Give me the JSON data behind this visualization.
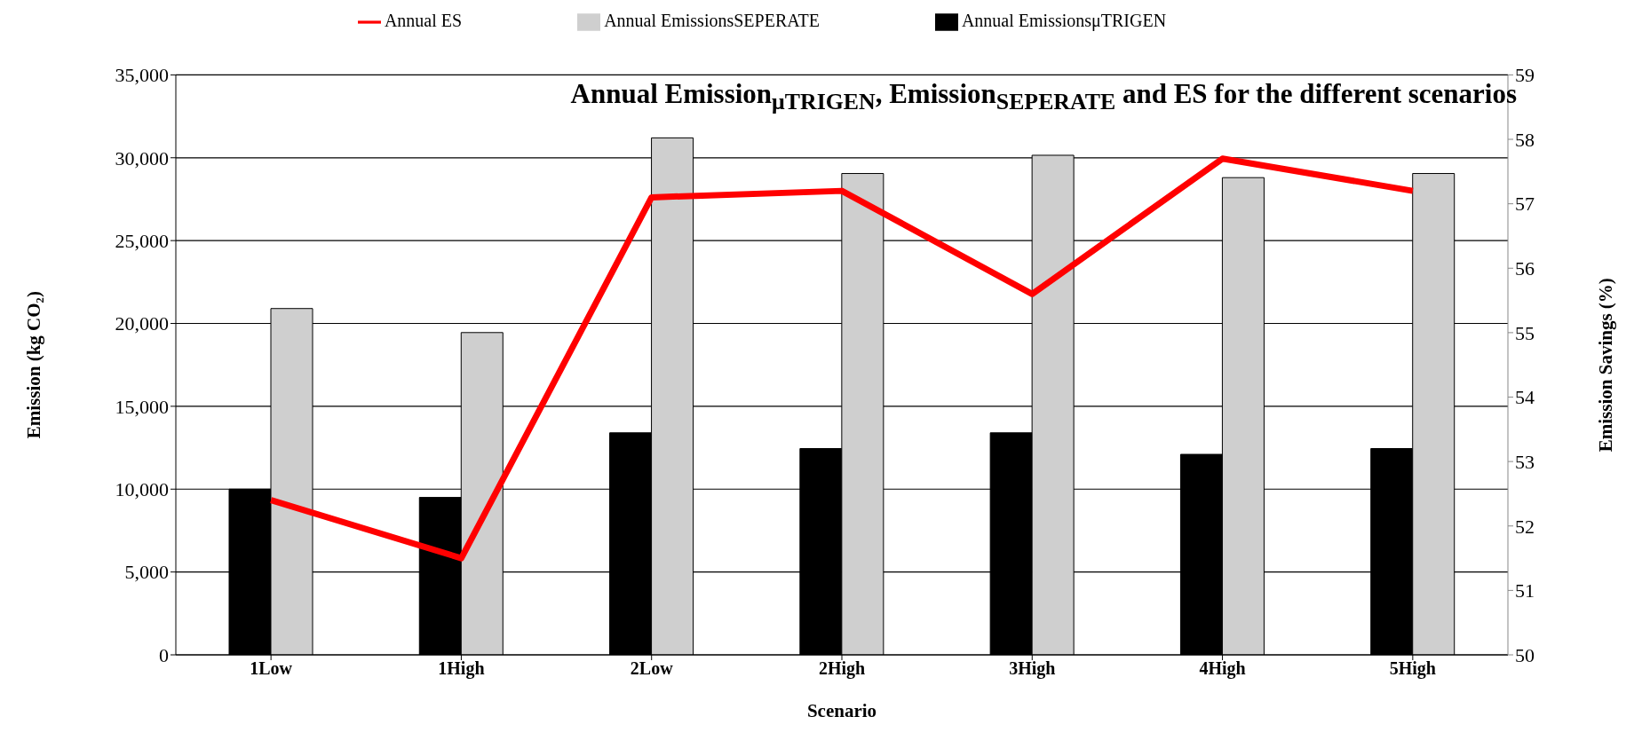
{
  "chart_data": {
    "type": "bar",
    "title": "Annual Emission$_{μTRIGEN}$, Emission$_{SEPERATE}$ and ES for the different scenarios",
    "xlabel": "Scenario",
    "ylabel": "Emission (kg CO₂)",
    "y2label": "Emission Savings (%)",
    "categories": [
      "1Low",
      "1High",
      "2Low",
      "2High",
      "3High",
      "4High",
      "5High"
    ],
    "series": [
      {
        "name": "Annual EmissionsμTRIGEN",
        "color": "#000000",
        "values": [
          10000,
          9500,
          13400,
          12450,
          13400,
          12100,
          12450
        ]
      },
      {
        "name": "Annual EmissionsSEPERATE",
        "color": "#cfcfcf",
        "values": [
          20900,
          19450,
          31200,
          29050,
          30150,
          28800,
          29050
        ]
      },
      {
        "name": "Annual ES",
        "type": "line",
        "axis": "y2",
        "color": "#ff0000",
        "values": [
          52.4,
          51.5,
          57.1,
          57.2,
          55.6,
          57.7,
          57.2
        ]
      }
    ],
    "ylim": [
      0,
      35000
    ],
    "yticks": [
      0,
      {
        "value": 5000,
        "label": "5,000"
      },
      {
        "value": 10000,
        "label": "10,000"
      },
      {
        "value": 15000,
        "label": "15,000"
      },
      {
        "value": 20000,
        "label": "20,000"
      },
      {
        "value": 25000,
        "label": "25,000"
      },
      {
        "value": 30000,
        "label": "30,000"
      },
      {
        "value": 35000,
        "label": "35,000"
      }
    ],
    "y2lim": [
      50,
      59
    ],
    "y2ticks": [
      50,
      51,
      52,
      53,
      54,
      55,
      56,
      57,
      58,
      59
    ],
    "grid": "y",
    "legend": "top"
  }
}
